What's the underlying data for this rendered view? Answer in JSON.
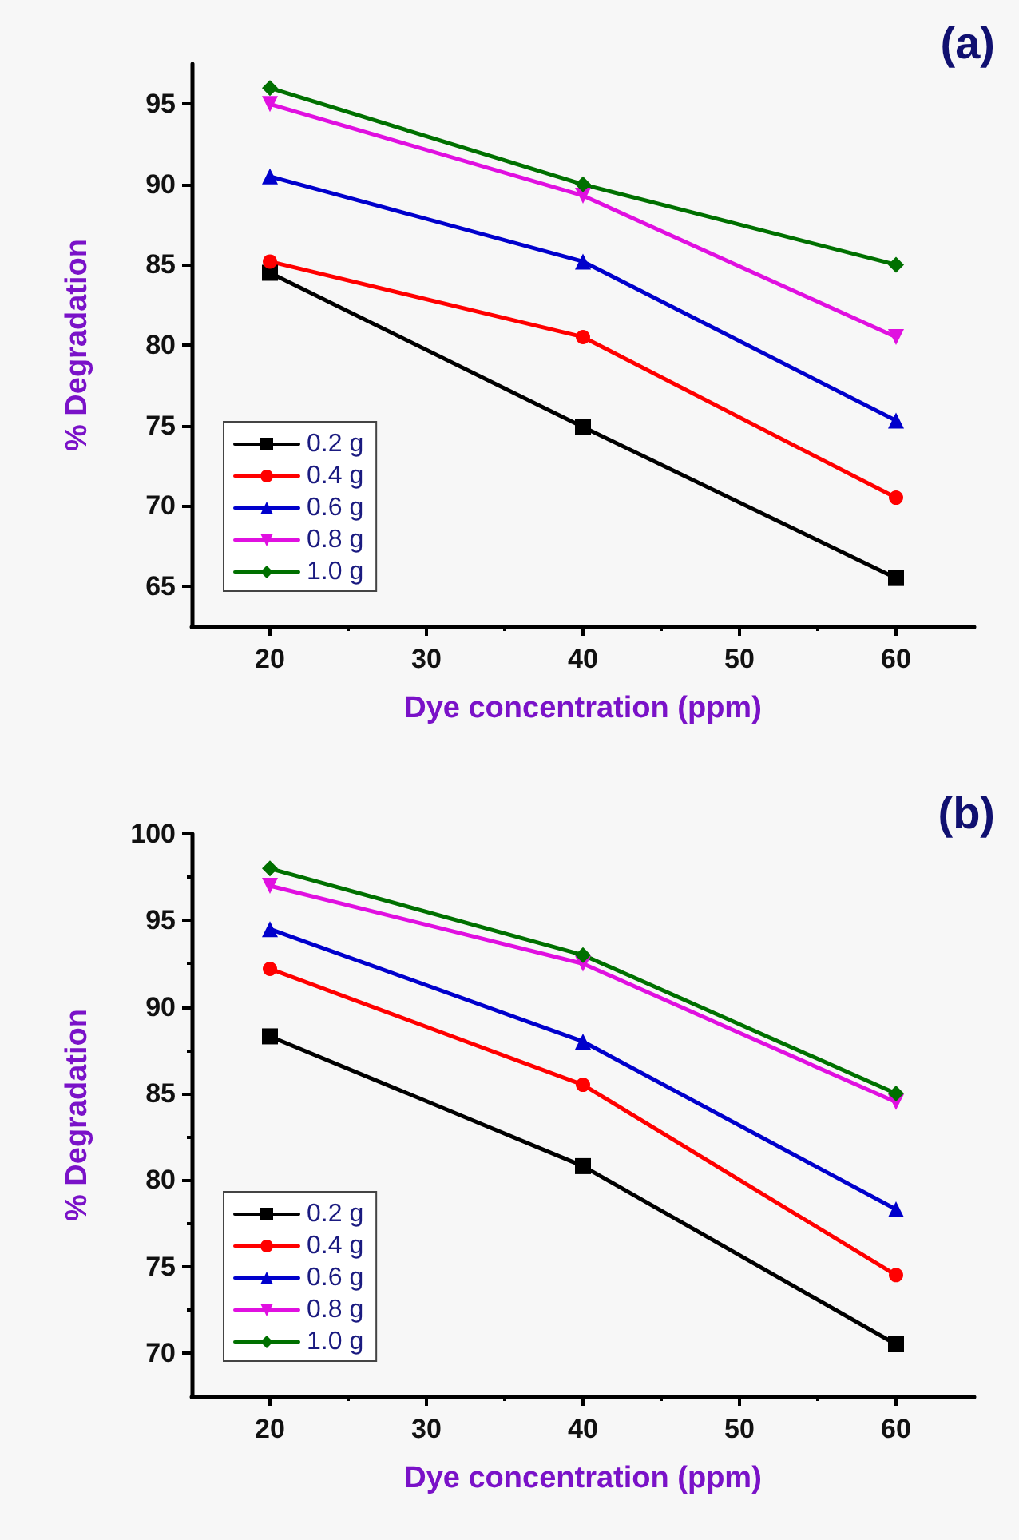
{
  "chart_data": [
    {
      "type": "line",
      "title": "(a)",
      "xlabel": "Dye concentration (ppm)",
      "ylabel": "% Degradation",
      "x": [
        20,
        40,
        60
      ],
      "series": [
        {
          "name": "0.2 g",
          "color": "#000000",
          "marker": "square",
          "values": [
            84.5,
            74.9,
            65.5
          ]
        },
        {
          "name": "0.4 g",
          "color": "#ff0000",
          "marker": "circle",
          "values": [
            85.2,
            80.5,
            70.5
          ]
        },
        {
          "name": "0.6 g",
          "color": "#0000cc",
          "marker": "triangle",
          "values": [
            90.5,
            85.2,
            75.3
          ]
        },
        {
          "name": "0.8 g",
          "color": "#e010e0",
          "marker": "triangle-down",
          "values": [
            95,
            89.3,
            80.5
          ]
        },
        {
          "name": "1.0 g",
          "color": "#007000",
          "marker": "diamond",
          "values": [
            96,
            90,
            85
          ]
        }
      ],
      "xlim": [
        15,
        65
      ],
      "xticks": [
        20,
        30,
        40,
        50,
        60
      ],
      "ylim": [
        62.5,
        97.5
      ],
      "yticks": [
        65,
        70,
        75,
        80,
        85,
        90,
        95
      ],
      "grid": false,
      "legend": "bottom left",
      "line_style": "solid"
    },
    {
      "type": "line",
      "title": "(b)",
      "xlabel": "Dye concentration (ppm)",
      "ylabel": "% Degradation",
      "x": [
        20,
        40,
        60
      ],
      "series": [
        {
          "name": "0.2 g",
          "color": "#000000",
          "marker": "square",
          "values": [
            88.3,
            80.8,
            70.5
          ]
        },
        {
          "name": "0.4 g",
          "color": "#ff0000",
          "marker": "circle",
          "values": [
            92.2,
            85.5,
            74.5
          ]
        },
        {
          "name": "0.6 g",
          "color": "#0000cc",
          "marker": "triangle",
          "values": [
            94.5,
            88,
            78.3
          ]
        },
        {
          "name": "0.8 g",
          "color": "#e010e0",
          "marker": "triangle-down",
          "values": [
            97,
            92.5,
            84.5
          ]
        },
        {
          "name": "1.0 g",
          "color": "#007000",
          "marker": "diamond",
          "values": [
            98,
            93,
            85
          ]
        }
      ],
      "xlim": [
        15,
        65
      ],
      "xticks": [
        20,
        30,
        40,
        50,
        60
      ],
      "ylim": [
        67.5,
        100
      ],
      "yticks": [
        70,
        75,
        80,
        85,
        90,
        95,
        100
      ],
      "grid": false,
      "legend": "bottom left",
      "line_style": "solid"
    }
  ]
}
